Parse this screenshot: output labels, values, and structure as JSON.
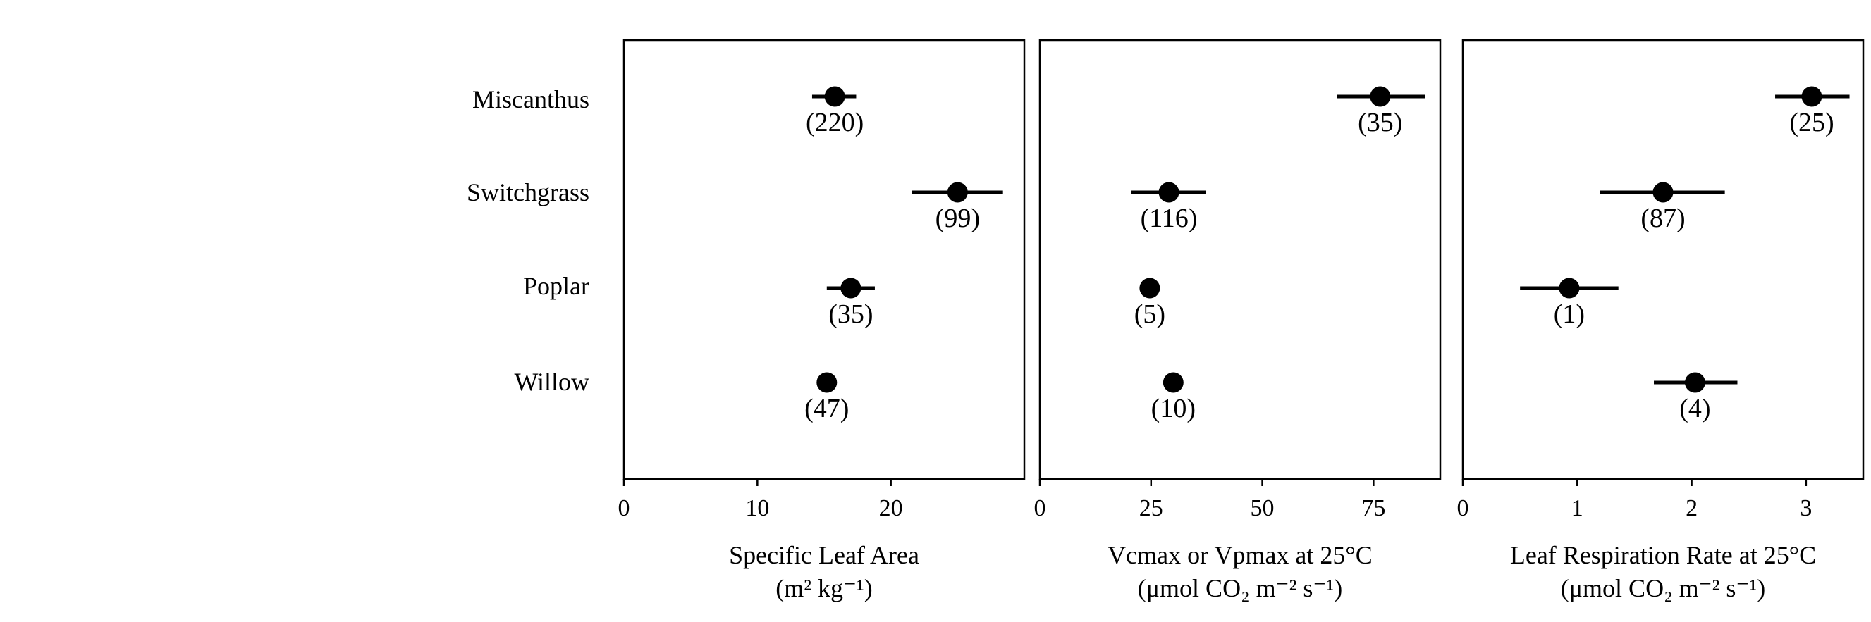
{
  "chart_data": [
    {
      "type": "scatter",
      "subtype": "dot-and-whisker",
      "categories": [
        "Miscanthus",
        "Switchgrass",
        "Poplar",
        "Willow"
      ],
      "values": [
        15.8,
        25.0,
        17.0,
        15.2
      ],
      "error_low": [
        14.1,
        21.6,
        15.2,
        14.6
      ],
      "error_high": [
        17.4,
        28.4,
        18.8,
        15.8
      ],
      "sample_sizes": [
        "(220)",
        "(99)",
        "(35)",
        "(47)"
      ],
      "xlabel_line1": "Specific Leaf Area",
      "xlabel_line2": "(m² kg⁻¹)",
      "xlim": [
        0,
        30
      ],
      "ticks": [
        0,
        10,
        20
      ],
      "tick_labels": [
        "0",
        "10",
        "20"
      ]
    },
    {
      "type": "scatter",
      "subtype": "dot-and-whisker",
      "categories": [
        "Miscanthus",
        "Switchgrass",
        "Poplar",
        "Willow"
      ],
      "values": [
        76.5,
        29.0,
        24.7,
        30.0
      ],
      "error_low": [
        66.8,
        20.6,
        22.7,
        30.0
      ],
      "error_high": [
        86.6,
        37.3,
        26.8,
        30.0
      ],
      "sample_sizes": [
        "(35)",
        "(116)",
        "(5)",
        "(10)"
      ],
      "xlabel_line1": "Vcmax or Vpmax at 25°C",
      "xlabel_line2": "(μmol CO₂ m⁻² s⁻¹)",
      "xlim": [
        0,
        90
      ],
      "ticks": [
        0,
        25,
        50,
        75
      ],
      "tick_labels": [
        "0",
        "25",
        "50",
        "75"
      ]
    },
    {
      "type": "scatter",
      "subtype": "dot-and-whisker",
      "categories": [
        "Miscanthus",
        "Switchgrass",
        "Poplar",
        "Willow"
      ],
      "values": [
        3.05,
        1.75,
        0.93,
        2.03
      ],
      "error_low": [
        2.73,
        1.2,
        0.5,
        1.67
      ],
      "error_high": [
        3.38,
        2.29,
        1.36,
        2.4
      ],
      "sample_sizes": [
        "(25)",
        "(87)",
        "(1)",
        "(4)"
      ],
      "xlabel_line1": "Leaf Respiration Rate at 25°C",
      "xlabel_line2": "(μmol CO₂ m⁻² s⁻¹)",
      "xlim": [
        0,
        3.5
      ],
      "ticks": [
        0,
        1,
        2,
        3
      ],
      "tick_labels": [
        "0",
        "1",
        "2",
        "3"
      ]
    }
  ]
}
